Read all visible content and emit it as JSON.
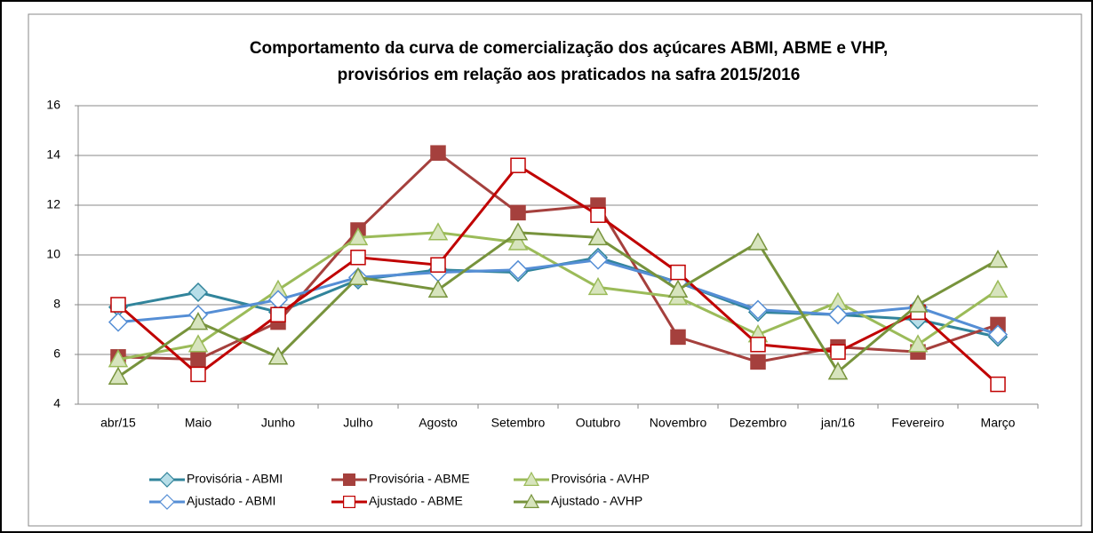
{
  "chart_data": {
    "type": "line",
    "title": [
      "Comportamento da curva de comercialização dos açúcares ABMI, ABME e VHP,",
      "provisórios em relação aos praticados na safra 2015/2016"
    ],
    "categories": [
      "abr/15",
      "Maio",
      "Junho",
      "Julho",
      "Agosto",
      "Setembro",
      "Outubro",
      "Novembro",
      "Dezembro",
      "jan/16",
      "Fevereiro",
      "Março"
    ],
    "ylim": [
      4,
      16
    ],
    "yticks": [
      4,
      6,
      8,
      10,
      12,
      14,
      16
    ],
    "grid": true,
    "series": [
      {
        "name": "Provisória - ABMI",
        "color": "#31849b",
        "marker": "diamond",
        "marker_fill": "#b7dee8",
        "values": [
          7.9,
          8.5,
          7.7,
          9.0,
          9.4,
          9.3,
          9.9,
          8.9,
          7.7,
          7.6,
          7.4,
          6.7
        ]
      },
      {
        "name": "Provisória - ABME",
        "color": "#a5403d",
        "marker": "square",
        "marker_fill": "#a5403d",
        "values": [
          5.9,
          5.8,
          7.3,
          11.0,
          14.1,
          11.7,
          12.0,
          6.7,
          5.7,
          6.3,
          6.1,
          7.2
        ]
      },
      {
        "name": "Provisória - AVHP",
        "color": "#9bbb59",
        "marker": "triangle",
        "marker_fill": "#d7e4bd",
        "values": [
          5.8,
          6.4,
          8.6,
          10.7,
          10.9,
          10.5,
          8.7,
          8.3,
          6.8,
          8.1,
          6.4,
          8.6
        ]
      },
      {
        "name": "Ajustado - ABMI",
        "color": "#558ed5",
        "marker": "diamond",
        "marker_fill": "#ffffff",
        "values": [
          7.3,
          7.6,
          8.2,
          9.1,
          9.3,
          9.4,
          9.8,
          8.9,
          7.8,
          7.6,
          7.9,
          6.8
        ]
      },
      {
        "name": "Ajustado - ABME",
        "color": "#c00000",
        "marker": "square",
        "marker_fill": "#ffffff",
        "values": [
          8.0,
          5.2,
          7.6,
          9.9,
          9.6,
          13.6,
          11.6,
          9.3,
          6.4,
          6.1,
          7.7,
          4.8
        ]
      },
      {
        "name": "Ajustado - AVHP",
        "color": "#77933c",
        "marker": "triangle",
        "marker_fill": "#d7e4bd",
        "values": [
          5.1,
          7.3,
          5.9,
          9.1,
          8.6,
          10.9,
          10.7,
          8.6,
          10.5,
          5.3,
          8.0,
          9.8
        ]
      }
    ]
  }
}
